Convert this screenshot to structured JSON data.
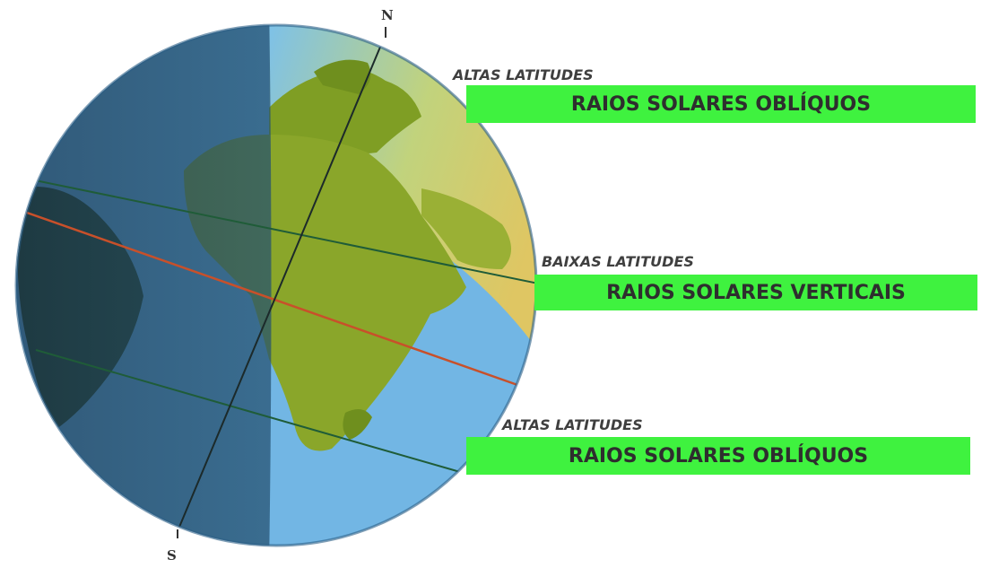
{
  "poles": {
    "north": "N",
    "south": "S"
  },
  "zones": [
    {
      "id": "top",
      "latitude_label": "ALTAS LATITUDES",
      "ray_label": "RAIOS SOLARES OBLÍQUOS"
    },
    {
      "id": "mid",
      "latitude_label": "BAIXAS LATITUDES",
      "ray_label": "RAIOS SOLARES VERTICAIS"
    },
    {
      "id": "bot",
      "latitude_label": "ALTAS LATITUDES",
      "ray_label": "RAIOS SOLARES OBLÍQUOS"
    }
  ],
  "colors": {
    "bar": "#3ff23f",
    "ocean_lit": "#6fb3e3",
    "ocean_shadow": "#1f4a6a",
    "land_lit": "#8fa82a",
    "land_shadow": "#2c3d18",
    "equator": "#c8502a",
    "latitude_line": "#1a6a3a",
    "sunlight": "#f2c94c"
  }
}
